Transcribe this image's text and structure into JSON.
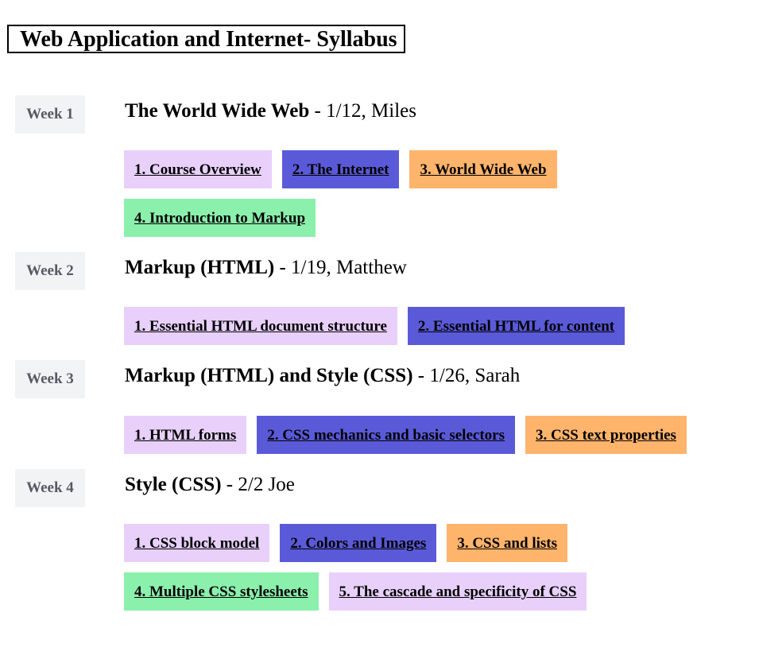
{
  "title": "Web Application and Internet- Syllabus",
  "weeks": [
    {
      "label": "Week 1",
      "topic": "The World Wide Web",
      "details": " - 1/12, Miles",
      "lessons": [
        {
          "label": "1. Course Overview",
          "color": "#e8d0fb"
        },
        {
          "label": "2. The Internet",
          "color": "#5a5ad9"
        },
        {
          "label": "3. World Wide Web",
          "color": "#ffb46c"
        },
        {
          "label": "4. Introduction to Markup",
          "color": "#8bf0ac"
        }
      ]
    },
    {
      "label": "Week 2",
      "topic": "Markup (HTML)",
      "details": " - 1/19, Matthew",
      "lessons": [
        {
          "label": "1. Essential HTML document structure",
          "color": "#e8d0fb"
        },
        {
          "label": "2. Essential HTML for content",
          "color": "#5a5ad9"
        }
      ]
    },
    {
      "label": "Week 3",
      "topic": "Markup (HTML) and Style (CSS)",
      "details": " - 1/26, Sarah",
      "lessons": [
        {
          "label": "1. HTML forms",
          "color": "#e8d0fb"
        },
        {
          "label": "2. CSS mechanics and basic selectors",
          "color": "#5a5ad9"
        },
        {
          "label": "3. CSS text properties",
          "color": "#ffb46c"
        }
      ]
    },
    {
      "label": "Week 4",
      "topic": "Style (CSS)",
      "details": " - 2/2 Joe",
      "lessons": [
        {
          "label": "1. CSS block model",
          "color": "#e8d0fb"
        },
        {
          "label": "2. Colors and Images",
          "color": "#5a5ad9"
        },
        {
          "label": "3. CSS and lists",
          "color": "#ffb46c"
        },
        {
          "label": "4. Multiple CSS stylesheets",
          "color": "#8bf0ac"
        },
        {
          "label": "5. The cascade and specificity of CSS",
          "color": "#e8d0fb"
        }
      ]
    }
  ]
}
